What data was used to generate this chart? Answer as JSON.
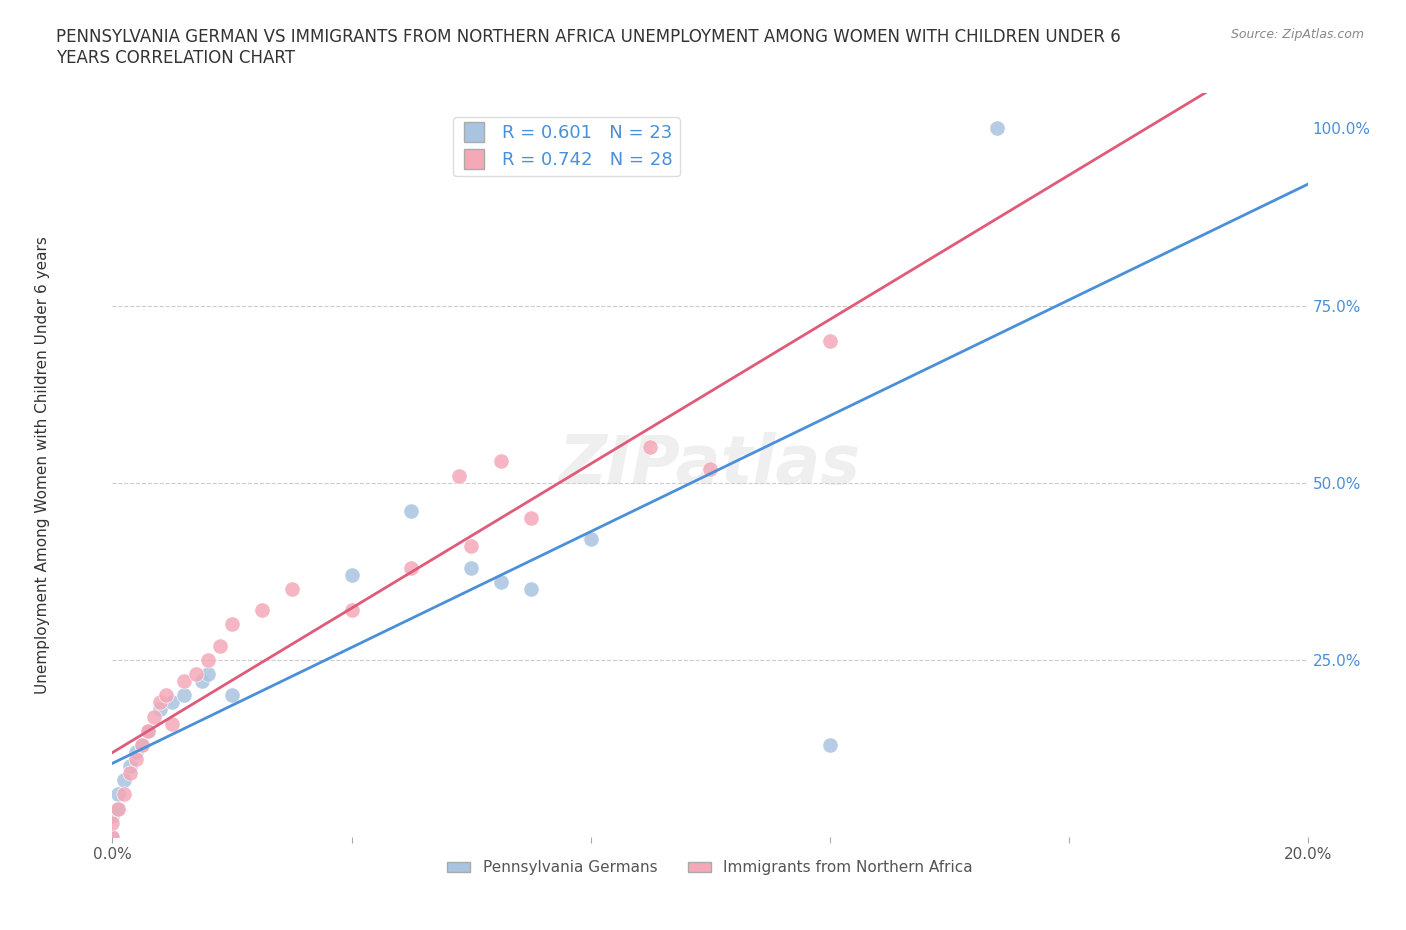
{
  "title": "PENNSYLVANIA GERMAN VS IMMIGRANTS FROM NORTHERN AFRICA UNEMPLOYMENT AMONG WOMEN WITH CHILDREN UNDER 6\nYEARS CORRELATION CHART",
  "source": "Source: ZipAtlas.com",
  "ylabel": "Unemployment Among Women with Children Under 6 years",
  "series1_label": "Pennsylvania Germans",
  "series2_label": "Immigrants from Northern Africa",
  "series1_color": "#a8c4e0",
  "series2_color": "#f4a8b8",
  "series1_line_color": "#4a90d9",
  "series2_line_color": "#e05a7a",
  "series1_R": 0.601,
  "series1_N": 23,
  "series2_R": 0.742,
  "series2_N": 28,
  "xlim": [
    0.0,
    0.2
  ],
  "ylim": [
    0.0,
    1.05
  ],
  "yticks_right": [
    0.0,
    0.25,
    0.5,
    0.75,
    1.0
  ],
  "ytick_labels_right": [
    "",
    "25.0%",
    "50.0%",
    "75.0%",
    "100.0%"
  ],
  "grid_color": "#cccccc",
  "background_color": "#ffffff",
  "watermark": "ZIPatlas",
  "blue_x": [
    0.0,
    0.0,
    0.001,
    0.001,
    0.002,
    0.003,
    0.004,
    0.005,
    0.006,
    0.008,
    0.01,
    0.012,
    0.015,
    0.016,
    0.02,
    0.04,
    0.05,
    0.06,
    0.065,
    0.07,
    0.08,
    0.12,
    0.148
  ],
  "blue_y": [
    0.0,
    0.03,
    0.04,
    0.06,
    0.08,
    0.1,
    0.12,
    0.13,
    0.15,
    0.18,
    0.19,
    0.2,
    0.22,
    0.23,
    0.2,
    0.37,
    0.46,
    0.38,
    0.36,
    0.35,
    0.42,
    0.13,
    1.0
  ],
  "pink_x": [
    0.0,
    0.0,
    0.001,
    0.002,
    0.003,
    0.004,
    0.005,
    0.006,
    0.007,
    0.008,
    0.009,
    0.01,
    0.012,
    0.014,
    0.016,
    0.018,
    0.02,
    0.025,
    0.03,
    0.04,
    0.05,
    0.058,
    0.06,
    0.065,
    0.07,
    0.09,
    0.1,
    0.12
  ],
  "pink_y": [
    0.0,
    0.02,
    0.04,
    0.06,
    0.09,
    0.11,
    0.13,
    0.15,
    0.17,
    0.19,
    0.2,
    0.16,
    0.22,
    0.23,
    0.25,
    0.27,
    0.3,
    0.32,
    0.35,
    0.32,
    0.38,
    0.51,
    0.41,
    0.53,
    0.45,
    0.55,
    0.52,
    0.7
  ]
}
